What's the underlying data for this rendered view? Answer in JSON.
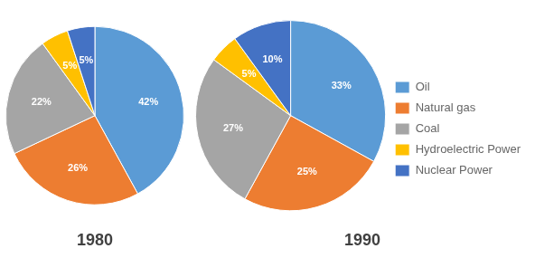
{
  "chart_data": [
    {
      "type": "pie",
      "title": "1980",
      "categories": [
        "Oil",
        "Natural gas",
        "Coal",
        "Hydroelectric Power",
        "Nuclear Power"
      ],
      "values": [
        42,
        26,
        22,
        5,
        5
      ],
      "value_labels": [
        "42%",
        "26%",
        "22%",
        "5%",
        "5%"
      ],
      "colors": [
        "#5B9BD5",
        "#ED7D31",
        "#A5A5A5",
        "#FFC000",
        "#4472C4"
      ],
      "data_labels": true
    },
    {
      "type": "pie",
      "title": "1990",
      "categories": [
        "Oil",
        "Natural gas",
        "Coal",
        "Hydroelectric Power",
        "Nuclear Power"
      ],
      "values": [
        33,
        25,
        27,
        5,
        10
      ],
      "value_labels": [
        "33%",
        "25%",
        "27%",
        "5%",
        "10%"
      ],
      "colors": [
        "#5B9BD5",
        "#ED7D31",
        "#A5A5A5",
        "#FFC000",
        "#4472C4"
      ],
      "data_labels": true,
      "legend": "right"
    }
  ]
}
